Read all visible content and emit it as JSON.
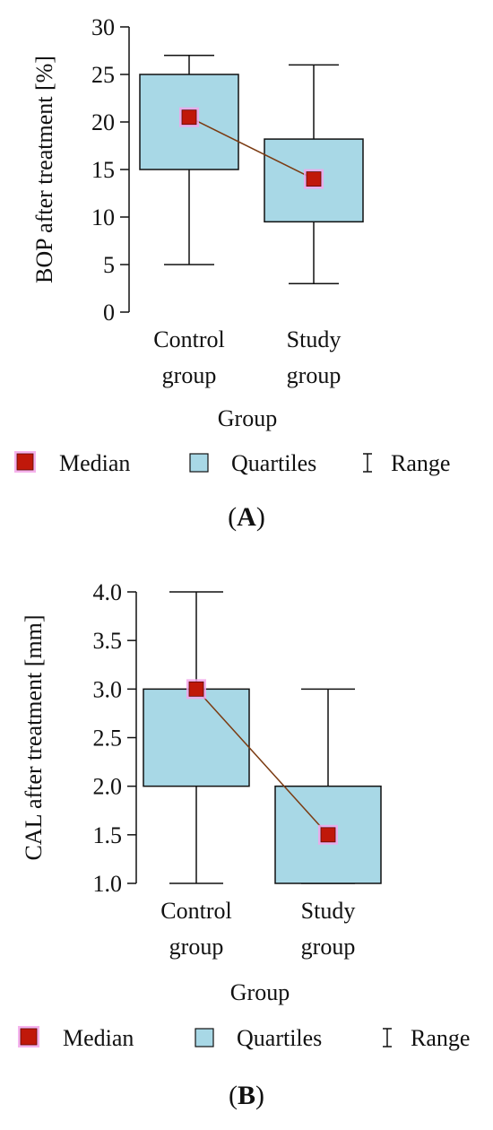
{
  "colors": {
    "box_fill": "#a8d8e6",
    "median_marker": "#c0180a",
    "median_halo": "#f3a6ea",
    "line": "#111111",
    "median_connector": "#7b3b12"
  },
  "legend": {
    "median": "Median",
    "quartiles": "Quartiles",
    "range": "Range"
  },
  "chart_data": [
    {
      "type": "box",
      "panel_label": "A",
      "ylabel": "BOP after treatment [%]",
      "xlabel": "Group",
      "ylim": [
        0,
        30
      ],
      "yticks": [
        "0",
        "5",
        "10",
        "15",
        "20",
        "25",
        "30"
      ],
      "categories": [
        {
          "line1": "Control",
          "line2": "group"
        },
        {
          "line1": "Study",
          "line2": "group"
        }
      ],
      "series": [
        {
          "min": 5,
          "q1": 15,
          "median": 20.5,
          "q3": 25,
          "max": 27
        },
        {
          "min": 3,
          "q1": 9.5,
          "median": 14,
          "q3": 18.2,
          "max": 26
        }
      ]
    },
    {
      "type": "box",
      "panel_label": "B",
      "ylabel": "CAL after treatment [mm]",
      "xlabel": "Group",
      "ylim": [
        1.0,
        4.0
      ],
      "yticks": [
        "1.0",
        "1.5",
        "2.0",
        "2.5",
        "3.0",
        "3.5",
        "4.0"
      ],
      "categories": [
        {
          "line1": "Control",
          "line2": "group"
        },
        {
          "line1": "Study",
          "line2": "group"
        }
      ],
      "series": [
        {
          "min": 1.0,
          "q1": 2.0,
          "median": 3.0,
          "q3": 3.0,
          "max": 4.0
        },
        {
          "min": 1.0,
          "q1": 1.0,
          "median": 1.5,
          "q3": 2.0,
          "max": 3.0
        }
      ]
    }
  ]
}
